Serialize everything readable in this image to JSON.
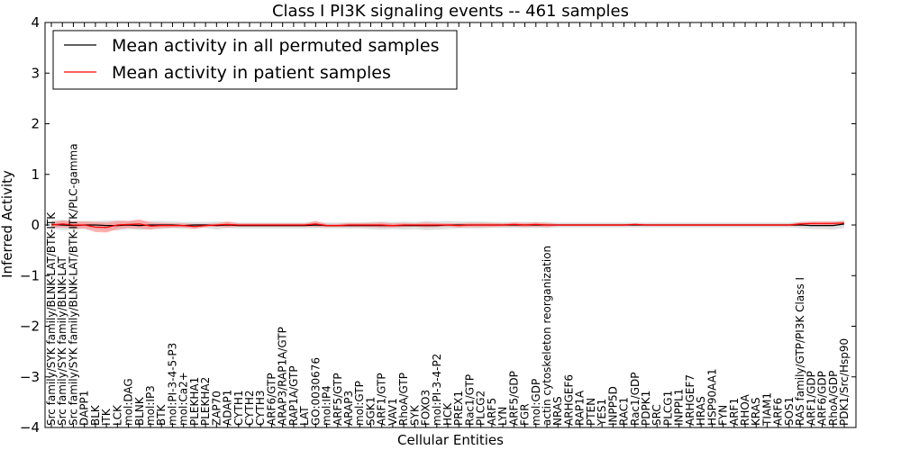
{
  "chart_data": {
    "type": "line",
    "title": "Class I PI3K signaling events -- 461 samples",
    "xlabel": "Cellular Entities",
    "ylabel": "Inferred Activity",
    "ylim": [
      -4,
      4
    ],
    "yticks": [
      -4,
      -3,
      -2,
      -1,
      0,
      1,
      2,
      3,
      4
    ],
    "ytick_labels": [
      "−4",
      "−3",
      "−2",
      "−1",
      "0",
      "1",
      "2",
      "3",
      "4"
    ],
    "grid": false,
    "legend_placement": "top-left",
    "categories": [
      "Src family/SYK family/BLNK-LAT/BTK-ITK",
      "Src family/SYK family/BLNK-LAT",
      "Src family/SYK family/BLNK-LAT/BTK-ITK/PLC-gamma",
      "DAPP1",
      "BLK",
      "ITK",
      "LCK",
      "mol:DAG",
      "BLNK",
      "mol:IP3",
      "BTK",
      "mol:PI-3-4-5-P3",
      "mol:Ca2+",
      "PLEKHA1",
      "PLEKHA2",
      "ZAP70",
      "ADAP1",
      "CYTH1",
      "CYTH2",
      "CYTH3",
      "ARF6/GTP",
      "ARAP3/RAP1A/GTP",
      "RAP1A/GTP",
      "LAT",
      "GO:0030676",
      "mol:IP4",
      "ARF5/GTP",
      "ARAP3",
      "mol:GTP",
      "SGK1",
      "ARF1/GTP",
      "VAV1",
      "RhoA/GTP",
      "SYK",
      "FOXO3",
      "mol:PI-3-4-P2",
      "HCK",
      "PREX1",
      "Rac1/GTP",
      "PLCG2",
      "ARF5",
      "LYN",
      "ARF5/GDP",
      "FGR",
      "mol:GDP",
      "actin cytoskeleton reorganization",
      "NRAS",
      "ARHGEF6",
      "RAP1A",
      "PTEN",
      "YES1",
      "INPP5D",
      "RAC1",
      "Rac1/GDP",
      "PDPK1",
      "SRC",
      "PLCG1",
      "INPPL1",
      "ARHGEF7",
      "HRAS",
      "HSP90AA1",
      "FYN",
      "ARF1",
      "RHOA",
      "KRAS",
      "TIAM1",
      "ARF6",
      "SOS1",
      "RAS family/GTP/PI3K Class I",
      "ARF1/GDP",
      "ARF6/GDP",
      "RhoA/GDP",
      "PDK1/Src/Hsp90"
    ],
    "series": [
      {
        "name": "Mean activity in all permuted samples",
        "color": "#000000",
        "values": [
          0.01,
          0,
          -0.01,
          0,
          0,
          -0.01,
          -0.01,
          0,
          -0.01,
          0,
          0,
          0,
          -0.01,
          0,
          0,
          -0.01,
          0,
          -0.01,
          -0.01,
          -0.01,
          -0.01,
          -0.01,
          -0.01,
          -0.01,
          0,
          -0.01,
          -0.01,
          -0.01,
          -0.01,
          -0.01,
          -0.01,
          -0.01,
          -0.01,
          -0.01,
          -0.01,
          -0.01,
          0,
          0,
          0,
          0,
          0,
          0,
          0,
          0,
          0,
          0,
          0,
          0,
          0,
          0,
          0,
          0,
          0,
          0,
          0,
          0,
          0,
          0,
          0,
          0,
          0,
          0,
          0,
          0,
          0,
          0,
          0,
          0,
          0,
          -0.01,
          -0.01,
          -0.01,
          0.02
        ],
        "band": [
          0.08,
          0.1,
          0.08,
          0.08,
          0.08,
          0.1,
          0.1,
          0.08,
          0.09,
          0.08,
          0.08,
          0.07,
          0.07,
          0.06,
          0.06,
          0.08,
          0.06,
          0.06,
          0.06,
          0.06,
          0.06,
          0.06,
          0.06,
          0.06,
          0.06,
          0.06,
          0.06,
          0.06,
          0.06,
          0.07,
          0.08,
          0.07,
          0.08,
          0.07,
          0.09,
          0.08,
          0.08,
          0.07,
          0.07,
          0.07,
          0.06,
          0.06,
          0.06,
          0.06,
          0.06,
          0.06,
          0.05,
          0.05,
          0.05,
          0.05,
          0.05,
          0.05,
          0.05,
          0.05,
          0.05,
          0.05,
          0.05,
          0.05,
          0.05,
          0.05,
          0.05,
          0.05,
          0.05,
          0.05,
          0.05,
          0.05,
          0.05,
          0.05,
          0.06,
          0.07,
          0.07,
          0.08,
          0.08
        ],
        "band_color": "#cccccc"
      },
      {
        "name": "Mean activity in patient samples",
        "color": "#ff0000",
        "values": [
          0,
          0.02,
          0,
          0,
          -0.04,
          -0.05,
          0,
          0.01,
          0.02,
          -0.02,
          -0.01,
          -0.01,
          -0.01,
          -0.03,
          -0.01,
          0,
          0.01,
          0,
          0,
          0,
          0,
          0,
          0,
          0,
          0.02,
          -0.01,
          -0.01,
          0,
          0,
          0,
          0,
          -0.01,
          0,
          0,
          0,
          0,
          0,
          -0.01,
          0,
          0,
          0,
          0,
          0.01,
          0,
          0.01,
          0,
          0,
          0,
          0,
          0,
          0,
          0,
          0,
          0.01,
          0,
          0,
          0,
          0,
          0,
          0,
          0,
          0,
          0,
          0,
          0,
          0,
          0,
          0,
          0.02,
          0.03,
          0.03,
          0.03,
          0.04
        ],
        "band": [
          0.05,
          0.07,
          0.07,
          0.07,
          0.1,
          0.1,
          0.08,
          0.07,
          0.09,
          0.07,
          0.05,
          0.04,
          0.04,
          0.05,
          0.03,
          0.03,
          0.06,
          0.03,
          0.03,
          0.03,
          0.03,
          0.03,
          0.03,
          0.03,
          0.06,
          0.03,
          0.03,
          0.04,
          0.04,
          0.04,
          0.05,
          0.04,
          0.04,
          0.03,
          0.05,
          0.04,
          0.03,
          0.04,
          0.04,
          0.04,
          0.04,
          0.03,
          0.04,
          0.04,
          0.04,
          0.04,
          0.02,
          0.02,
          0.02,
          0.02,
          0.02,
          0.02,
          0.02,
          0.02,
          0.02,
          0.02,
          0.02,
          0.02,
          0.02,
          0.02,
          0.02,
          0.02,
          0.02,
          0.02,
          0.02,
          0.02,
          0.02,
          0.02,
          0.04,
          0.04,
          0.04,
          0.04,
          0.03
        ],
        "band_color": "#ff8080"
      }
    ]
  }
}
